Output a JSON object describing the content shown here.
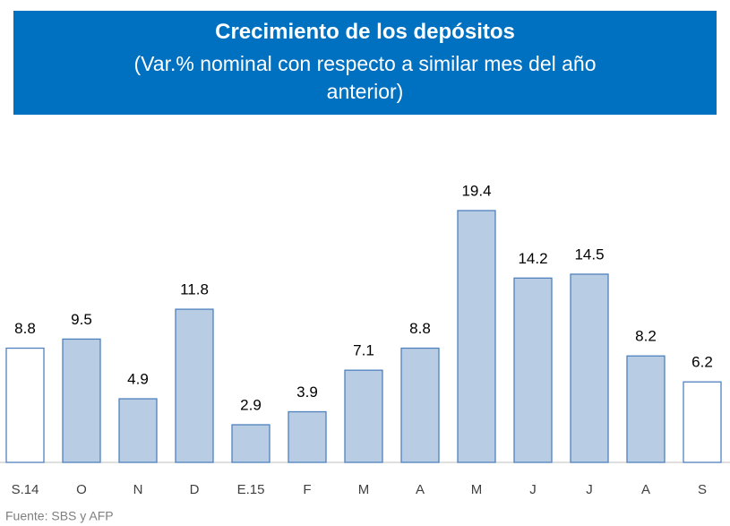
{
  "chart_data": {
    "type": "bar",
    "title": "Crecimiento de los depósitos",
    "subtitle": "(Var.% nominal con respecto a similar mes del año anterior)",
    "categories": [
      "S.14",
      "O",
      "N",
      "D",
      "E.15",
      "F",
      "M",
      "A",
      "M",
      "J",
      "J",
      "A",
      "S"
    ],
    "values": [
      8.8,
      9.5,
      4.9,
      11.8,
      2.9,
      3.9,
      7.1,
      8.8,
      19.4,
      14.2,
      14.5,
      8.2,
      6.2
    ],
    "colors": [
      "#ffffff",
      "#b8cce4",
      "#b8cce4",
      "#b8cce4",
      "#b8cce4",
      "#b8cce4",
      "#b8cce4",
      "#b8cce4",
      "#b8cce4",
      "#b8cce4",
      "#b8cce4",
      "#b8cce4",
      "#ffffff"
    ],
    "source": "Fuente: SBS y AFP"
  }
}
